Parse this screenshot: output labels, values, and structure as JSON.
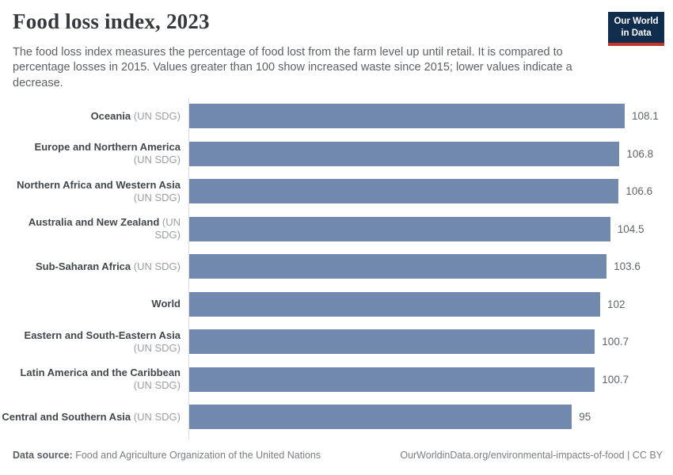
{
  "colors": {
    "bar": "#7089ad",
    "logo_bg": "#102d4e",
    "logo_stripe": "#c0362c",
    "axis_line": "#dddddd"
  },
  "header": {
    "title": "Food loss index, 2023",
    "subtitle": "The food loss index measures the percentage of food lost from the farm level up until retail. It is compared to percentage losses in 2015. Values greater than 100 show increased waste since 2015; lower values indicate a decrease.",
    "logo_line1": "Our World",
    "logo_line2": "in Data"
  },
  "chart_data": {
    "type": "bar",
    "orientation": "horizontal",
    "title": "Food loss index, 2023",
    "value_axis_visible": false,
    "xlim": [
      0,
      108.1
    ],
    "rows": [
      {
        "name": "Oceania",
        "suffix": "(UN SDG)",
        "two_line": false,
        "value": 108.1,
        "display": "108.1"
      },
      {
        "name": "Europe and Northern America",
        "suffix": "(UN SDG)",
        "two_line": true,
        "value": 106.8,
        "display": "106.8"
      },
      {
        "name": "Northern Africa and Western Asia",
        "suffix": "(UN SDG)",
        "two_line": true,
        "value": 106.6,
        "display": "106.6"
      },
      {
        "name": "Australia and New Zealand",
        "suffix": "(UN SDG)",
        "two_line": false,
        "value": 104.5,
        "display": "104.5"
      },
      {
        "name": "Sub-Saharan Africa",
        "suffix": "(UN SDG)",
        "two_line": false,
        "value": 103.6,
        "display": "103.6"
      },
      {
        "name": "World",
        "suffix": "",
        "two_line": false,
        "value": 102,
        "display": "102"
      },
      {
        "name": "Eastern and South-Eastern Asia",
        "suffix": "(UN SDG)",
        "two_line": true,
        "value": 100.7,
        "display": "100.7"
      },
      {
        "name": "Latin America and the Caribbean",
        "suffix": "(UN SDG)",
        "two_line": true,
        "value": 100.7,
        "display": "100.7"
      },
      {
        "name": "Central and Southern Asia",
        "suffix": "(UN SDG)",
        "two_line": false,
        "value": 95,
        "display": "95"
      }
    ]
  },
  "footer": {
    "source_label": "Data source:",
    "source": "Food and Agriculture Organization of the United Nations",
    "link": "OurWorldinData.org/environmental-impacts-of-food",
    "separator": "|",
    "license": "CC BY"
  }
}
